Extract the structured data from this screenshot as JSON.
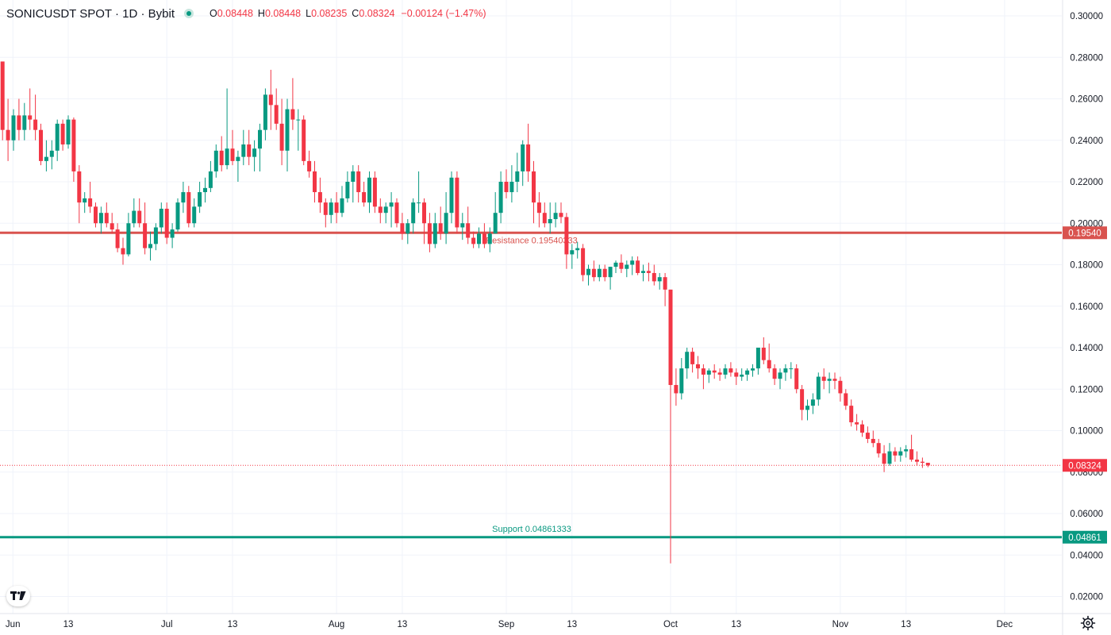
{
  "header": {
    "symbol": "SONICUSDT SPOT · 1D · Bybit",
    "open_label": "O",
    "open": "0.08448",
    "high_label": "H",
    "high": "0.08448",
    "low_label": "L",
    "low": "0.08235",
    "close_label": "C",
    "close": "0.08324",
    "change": "−0.00124 (−1.47%)"
  },
  "colors": {
    "up": "#089981",
    "down": "#f23645",
    "resistance": "#d9534f",
    "support": "#089981",
    "grid": "#f0f3fa",
    "axis_text": "#131722"
  },
  "icons": {
    "logo": "tradingview-logo-icon",
    "settings": "gear-icon"
  },
  "chart_data": {
    "type": "candlestick",
    "price_axis": {
      "min": 0.01,
      "max": 0.3,
      "ticks": [
        "0.30000",
        "0.28000",
        "0.26000",
        "0.24000",
        "0.22000",
        "0.20000",
        "0.18000",
        "0.16000",
        "0.14000",
        "0.12000",
        "0.10000",
        "0.08000",
        "0.06000",
        "0.04000",
        "0.02000"
      ]
    },
    "time_axis": {
      "ticks": [
        {
          "label": "Jun",
          "idx": 0
        },
        {
          "label": "13",
          "idx": 12
        },
        {
          "label": "Jul",
          "idx": 30
        },
        {
          "label": "13",
          "idx": 42
        },
        {
          "label": "Aug",
          "idx": 61
        },
        {
          "label": "13",
          "idx": 73
        },
        {
          "label": "Sep",
          "idx": 92
        },
        {
          "label": "13",
          "idx": 104
        },
        {
          "label": "Oct",
          "idx": 122
        },
        {
          "label": "13",
          "idx": 134
        },
        {
          "label": "Nov",
          "idx": 153
        },
        {
          "label": "13",
          "idx": 165
        },
        {
          "label": "Dec",
          "idx": 183
        }
      ]
    },
    "levels": [
      {
        "name": "Resistance",
        "value": 0.1954,
        "label": "Resistance 0.19540333",
        "axis_label": "0.19540"
      },
      {
        "name": "Support",
        "value": 0.04861,
        "label": "Support 0.04861333",
        "axis_label": "0.04861"
      }
    ],
    "last_price": {
      "value": 0.08324,
      "axis_label": "0.08324"
    },
    "candles": [
      [
        0.278,
        0.278,
        0.24,
        0.245
      ],
      [
        0.245,
        0.26,
        0.23,
        0.24
      ],
      [
        0.24,
        0.255,
        0.235,
        0.252
      ],
      [
        0.252,
        0.26,
        0.24,
        0.245
      ],
      [
        0.245,
        0.258,
        0.24,
        0.252
      ],
      [
        0.252,
        0.265,
        0.245,
        0.25
      ],
      [
        0.25,
        0.262,
        0.24,
        0.245
      ],
      [
        0.245,
        0.248,
        0.228,
        0.23
      ],
      [
        0.23,
        0.24,
        0.225,
        0.232
      ],
      [
        0.232,
        0.24,
        0.226,
        0.235
      ],
      [
        0.235,
        0.25,
        0.23,
        0.248
      ],
      [
        0.248,
        0.25,
        0.235,
        0.238
      ],
      [
        0.238,
        0.252,
        0.236,
        0.25
      ],
      [
        0.25,
        0.251,
        0.22,
        0.225
      ],
      [
        0.225,
        0.228,
        0.2,
        0.21
      ],
      [
        0.21,
        0.215,
        0.205,
        0.212
      ],
      [
        0.212,
        0.22,
        0.205,
        0.208
      ],
      [
        0.208,
        0.21,
        0.198,
        0.2
      ],
      [
        0.2,
        0.208,
        0.195,
        0.205
      ],
      [
        0.205,
        0.21,
        0.198,
        0.2
      ],
      [
        0.2,
        0.205,
        0.195,
        0.197
      ],
      [
        0.197,
        0.2,
        0.186,
        0.188
      ],
      [
        0.188,
        0.193,
        0.18,
        0.185
      ],
      [
        0.185,
        0.205,
        0.184,
        0.2
      ],
      [
        0.2,
        0.212,
        0.198,
        0.206
      ],
      [
        0.206,
        0.212,
        0.198,
        0.2
      ],
      [
        0.2,
        0.21,
        0.185,
        0.188
      ],
      [
        0.188,
        0.196,
        0.182,
        0.19
      ],
      [
        0.19,
        0.2,
        0.187,
        0.198
      ],
      [
        0.198,
        0.21,
        0.195,
        0.207
      ],
      [
        0.207,
        0.21,
        0.19,
        0.193
      ],
      [
        0.193,
        0.2,
        0.188,
        0.197
      ],
      [
        0.197,
        0.212,
        0.196,
        0.21
      ],
      [
        0.21,
        0.22,
        0.205,
        0.215
      ],
      [
        0.215,
        0.218,
        0.198,
        0.2
      ],
      [
        0.2,
        0.212,
        0.198,
        0.208
      ],
      [
        0.208,
        0.22,
        0.205,
        0.215
      ],
      [
        0.215,
        0.222,
        0.21,
        0.217
      ],
      [
        0.217,
        0.23,
        0.215,
        0.225
      ],
      [
        0.225,
        0.238,
        0.222,
        0.235
      ],
      [
        0.235,
        0.242,
        0.225,
        0.228
      ],
      [
        0.228,
        0.265,
        0.226,
        0.236
      ],
      [
        0.236,
        0.245,
        0.228,
        0.23
      ],
      [
        0.23,
        0.235,
        0.22,
        0.232
      ],
      [
        0.232,
        0.245,
        0.228,
        0.238
      ],
      [
        0.238,
        0.245,
        0.228,
        0.232
      ],
      [
        0.232,
        0.24,
        0.225,
        0.236
      ],
      [
        0.236,
        0.248,
        0.225,
        0.245
      ],
      [
        0.245,
        0.265,
        0.24,
        0.262
      ],
      [
        0.262,
        0.274,
        0.245,
        0.257
      ],
      [
        0.257,
        0.265,
        0.245,
        0.248
      ],
      [
        0.248,
        0.26,
        0.228,
        0.235
      ],
      [
        0.235,
        0.26,
        0.225,
        0.255
      ],
      [
        0.255,
        0.27,
        0.245,
        0.25
      ],
      [
        0.25,
        0.255,
        0.235,
        0.25
      ],
      [
        0.25,
        0.252,
        0.228,
        0.23
      ],
      [
        0.23,
        0.235,
        0.222,
        0.225
      ],
      [
        0.225,
        0.23,
        0.21,
        0.215
      ],
      [
        0.215,
        0.222,
        0.205,
        0.21
      ],
      [
        0.21,
        0.212,
        0.198,
        0.204
      ],
      [
        0.204,
        0.212,
        0.2,
        0.21
      ],
      [
        0.21,
        0.215,
        0.2,
        0.205
      ],
      [
        0.205,
        0.218,
        0.203,
        0.212
      ],
      [
        0.212,
        0.225,
        0.21,
        0.22
      ],
      [
        0.22,
        0.228,
        0.21,
        0.225
      ],
      [
        0.225,
        0.228,
        0.21,
        0.215
      ],
      [
        0.215,
        0.22,
        0.208,
        0.21
      ],
      [
        0.21,
        0.225,
        0.205,
        0.222
      ],
      [
        0.222,
        0.225,
        0.205,
        0.208
      ],
      [
        0.208,
        0.212,
        0.2,
        0.205
      ],
      [
        0.205,
        0.21,
        0.2,
        0.208
      ],
      [
        0.208,
        0.215,
        0.198,
        0.21
      ],
      [
        0.21,
        0.212,
        0.198,
        0.2
      ],
      [
        0.2,
        0.205,
        0.192,
        0.195
      ],
      [
        0.195,
        0.202,
        0.19,
        0.2
      ],
      [
        0.2,
        0.212,
        0.195,
        0.21
      ],
      [
        0.21,
        0.225,
        0.205,
        0.21
      ],
      [
        0.21,
        0.212,
        0.19,
        0.2
      ],
      [
        0.2,
        0.205,
        0.186,
        0.19
      ],
      [
        0.19,
        0.205,
        0.188,
        0.2
      ],
      [
        0.2,
        0.208,
        0.192,
        0.195
      ],
      [
        0.195,
        0.215,
        0.19,
        0.205
      ],
      [
        0.205,
        0.225,
        0.2,
        0.222
      ],
      [
        0.222,
        0.225,
        0.195,
        0.198
      ],
      [
        0.198,
        0.205,
        0.192,
        0.2
      ],
      [
        0.2,
        0.208,
        0.19,
        0.193
      ],
      [
        0.193,
        0.196,
        0.188,
        0.19
      ],
      [
        0.19,
        0.198,
        0.188,
        0.195
      ],
      [
        0.195,
        0.2,
        0.188,
        0.19
      ],
      [
        0.19,
        0.198,
        0.186,
        0.195
      ],
      [
        0.195,
        0.215,
        0.195,
        0.205
      ],
      [
        0.205,
        0.225,
        0.2,
        0.22
      ],
      [
        0.22,
        0.226,
        0.212,
        0.215
      ],
      [
        0.215,
        0.228,
        0.21,
        0.22
      ],
      [
        0.22,
        0.234,
        0.215,
        0.225
      ],
      [
        0.225,
        0.24,
        0.218,
        0.238
      ],
      [
        0.238,
        0.248,
        0.22,
        0.225
      ],
      [
        0.225,
        0.23,
        0.2,
        0.21
      ],
      [
        0.21,
        0.215,
        0.198,
        0.205
      ],
      [
        0.205,
        0.21,
        0.198,
        0.2
      ],
      [
        0.2,
        0.21,
        0.195,
        0.202
      ],
      [
        0.202,
        0.21,
        0.198,
        0.205
      ],
      [
        0.205,
        0.21,
        0.2,
        0.203
      ],
      [
        0.203,
        0.205,
        0.178,
        0.185
      ],
      [
        0.185,
        0.19,
        0.178,
        0.187
      ],
      [
        0.187,
        0.191,
        0.183,
        0.188
      ],
      [
        0.188,
        0.19,
        0.172,
        0.175
      ],
      [
        0.175,
        0.18,
        0.17,
        0.178
      ],
      [
        0.178,
        0.182,
        0.172,
        0.174
      ],
      [
        0.174,
        0.18,
        0.172,
        0.178
      ],
      [
        0.178,
        0.18,
        0.172,
        0.174
      ],
      [
        0.174,
        0.179,
        0.168,
        0.179
      ],
      [
        0.179,
        0.182,
        0.176,
        0.181
      ],
      [
        0.181,
        0.185,
        0.176,
        0.178
      ],
      [
        0.178,
        0.182,
        0.174,
        0.18
      ],
      [
        0.18,
        0.184,
        0.175,
        0.182
      ],
      [
        0.182,
        0.184,
        0.175,
        0.176
      ],
      [
        0.176,
        0.18,
        0.172,
        0.177
      ],
      [
        0.177,
        0.181,
        0.172,
        0.176
      ],
      [
        0.176,
        0.18,
        0.17,
        0.172
      ],
      [
        0.172,
        0.176,
        0.168,
        0.174
      ],
      [
        0.174,
        0.176,
        0.16,
        0.168
      ],
      [
        0.168,
        0.168,
        0.036,
        0.122
      ],
      [
        0.122,
        0.13,
        0.112,
        0.118
      ],
      [
        0.118,
        0.135,
        0.115,
        0.13
      ],
      [
        0.13,
        0.14,
        0.125,
        0.138
      ],
      [
        0.138,
        0.14,
        0.128,
        0.132
      ],
      [
        0.132,
        0.136,
        0.125,
        0.13
      ],
      [
        0.13,
        0.132,
        0.12,
        0.127
      ],
      [
        0.127,
        0.13,
        0.123,
        0.129
      ],
      [
        0.129,
        0.132,
        0.125,
        0.128
      ],
      [
        0.128,
        0.13,
        0.124,
        0.127
      ],
      [
        0.127,
        0.132,
        0.125,
        0.13
      ],
      [
        0.13,
        0.133,
        0.126,
        0.128
      ],
      [
        0.128,
        0.13,
        0.122,
        0.126
      ],
      [
        0.126,
        0.13,
        0.124,
        0.127
      ],
      [
        0.127,
        0.13,
        0.124,
        0.129
      ],
      [
        0.129,
        0.132,
        0.126,
        0.13
      ],
      [
        0.13,
        0.14,
        0.127,
        0.14
      ],
      [
        0.14,
        0.145,
        0.132,
        0.134
      ],
      [
        0.134,
        0.142,
        0.128,
        0.13
      ],
      [
        0.13,
        0.132,
        0.122,
        0.125
      ],
      [
        0.125,
        0.13,
        0.12,
        0.128
      ],
      [
        0.128,
        0.132,
        0.124,
        0.13
      ],
      [
        0.13,
        0.133,
        0.125,
        0.13
      ],
      [
        0.13,
        0.132,
        0.118,
        0.12
      ],
      [
        0.12,
        0.122,
        0.105,
        0.11
      ],
      [
        0.11,
        0.115,
        0.105,
        0.112
      ],
      [
        0.112,
        0.118,
        0.108,
        0.115
      ],
      [
        0.115,
        0.128,
        0.112,
        0.126
      ],
      [
        0.126,
        0.13,
        0.12,
        0.124
      ],
      [
        0.124,
        0.128,
        0.118,
        0.125
      ],
      [
        0.125,
        0.128,
        0.12,
        0.124
      ],
      [
        0.124,
        0.126,
        0.114,
        0.118
      ],
      [
        0.118,
        0.12,
        0.11,
        0.112
      ],
      [
        0.112,
        0.115,
        0.102,
        0.104
      ],
      [
        0.104,
        0.108,
        0.1,
        0.103
      ],
      [
        0.103,
        0.105,
        0.097,
        0.099
      ],
      [
        0.099,
        0.102,
        0.094,
        0.096
      ],
      [
        0.096,
        0.1,
        0.092,
        0.094
      ],
      [
        0.094,
        0.096,
        0.087,
        0.089
      ],
      [
        0.089,
        0.093,
        0.08,
        0.084
      ],
      [
        0.084,
        0.094,
        0.083,
        0.09
      ],
      [
        0.09,
        0.092,
        0.085,
        0.088
      ],
      [
        0.088,
        0.092,
        0.085,
        0.09
      ],
      [
        0.09,
        0.093,
        0.087,
        0.091
      ],
      [
        0.091,
        0.098,
        0.085,
        0.086
      ],
      [
        0.086,
        0.09,
        0.083,
        0.085
      ],
      [
        0.085,
        0.087,
        0.082,
        0.0845
      ],
      [
        0.08448,
        0.08448,
        0.08235,
        0.08324
      ]
    ]
  }
}
